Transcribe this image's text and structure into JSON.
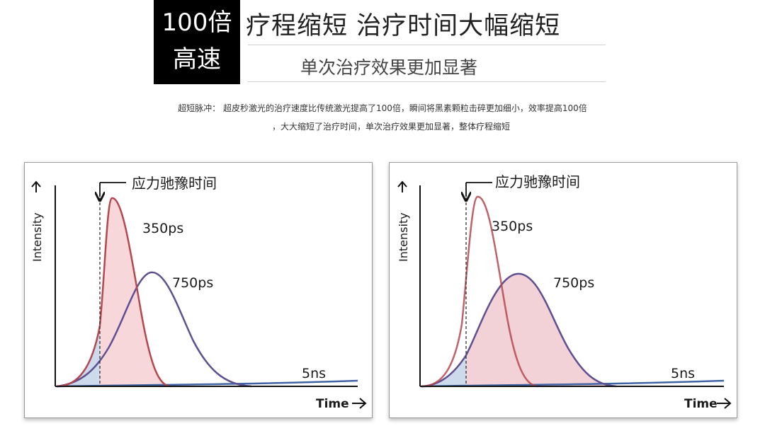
{
  "header": {
    "badge_line1": "100倍",
    "badge_line2": "高速",
    "title": "疗程缩短 治疗时间大幅缩短",
    "subtitle": "单次治疗效果更加显著"
  },
  "description": {
    "line1": "超短脉冲： 超皮秒激光的治疗速度比传统激光提高了100倍，瞬间将黑素颗粒击碎更加细小，效率提高100倍",
    "line2": "，大大缩短了治疗时间，单次治疗效果更加显著，整体疗程缩短"
  },
  "panels": [
    {
      "y_axis_label": "Intensity",
      "x_axis_label": "Time",
      "stress_label": "应力驰豫时间",
      "pulse_short": "350ps",
      "pulse_long": "750ps",
      "pulse_ns": "5ns"
    },
    {
      "y_axis_label": "Intensity",
      "x_axis_label": "Time",
      "stress_label": "应力驰豫时间",
      "pulse_short": "350ps",
      "pulse_long": "750ps",
      "pulse_ns": "5ns"
    }
  ],
  "colors": {
    "red_curve": "#b5474f",
    "purple_curve": "#5e4f91",
    "blue_line": "#3f64a5",
    "pink_fill": "#f6d3d6",
    "blue_fill": "#c6d6ea"
  }
}
